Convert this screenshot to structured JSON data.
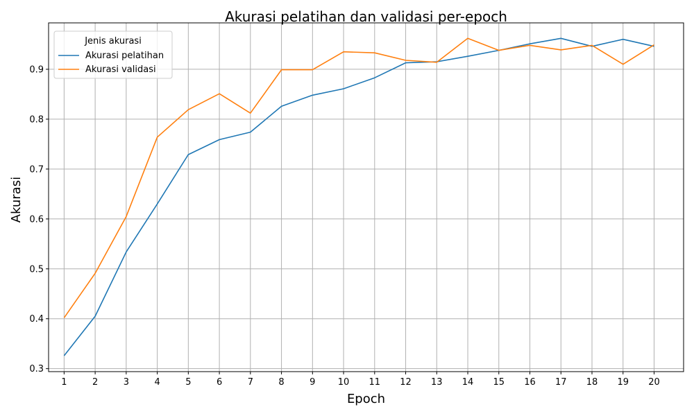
{
  "chart_data": {
    "type": "line",
    "title": "Akurasi pelatihan dan validasi per-epoch",
    "xlabel": "Epoch",
    "ylabel": "Akurasi",
    "x": [
      1,
      2,
      3,
      4,
      5,
      6,
      7,
      8,
      9,
      10,
      11,
      12,
      13,
      14,
      15,
      16,
      17,
      18,
      19,
      20
    ],
    "xlim": [
      0.5,
      20.95
    ],
    "ylim": [
      0.294,
      0.993
    ],
    "yticks": [
      0.3,
      0.4,
      0.5,
      0.6,
      0.7,
      0.8,
      0.9
    ],
    "ytick_labels": [
      "0.3",
      "0.4",
      "0.5",
      "0.6",
      "0.7",
      "0.8",
      "0.9"
    ],
    "grid": true,
    "legend": {
      "title": "Jenis akurasi",
      "position": "top-left"
    },
    "series": [
      {
        "name": "Akurasi pelatihan",
        "color": "#1f77b4",
        "values": [
          0.326,
          0.405,
          0.534,
          0.63,
          0.729,
          0.759,
          0.774,
          0.826,
          0.848,
          0.861,
          0.883,
          0.913,
          0.915,
          0.926,
          0.938,
          0.951,
          0.962,
          0.946,
          0.96,
          0.946
        ]
      },
      {
        "name": "Akurasi validasi",
        "color": "#ff7f0e",
        "values": [
          0.402,
          0.491,
          0.605,
          0.764,
          0.819,
          0.851,
          0.812,
          0.899,
          0.899,
          0.935,
          0.933,
          0.918,
          0.914,
          0.962,
          0.938,
          0.948,
          0.939,
          0.948,
          0.91,
          0.949
        ]
      }
    ]
  }
}
